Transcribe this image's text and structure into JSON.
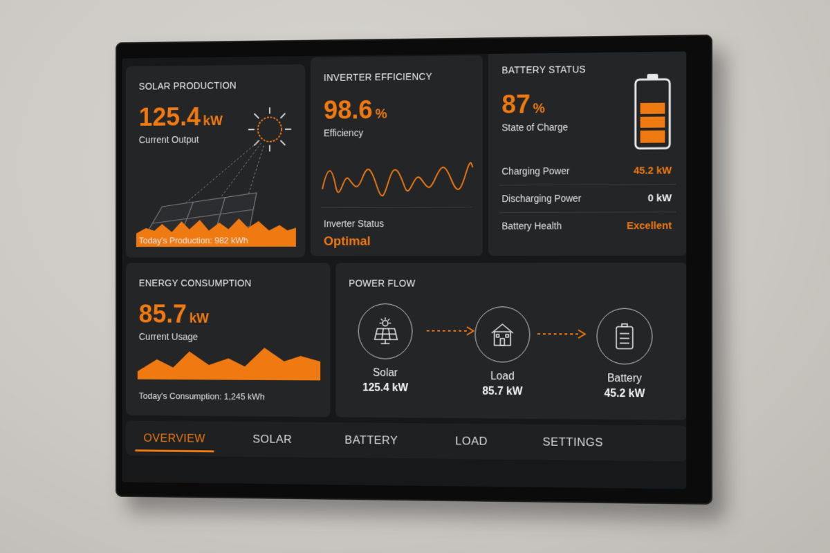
{
  "solar": {
    "title": "SOLAR PRODUCTION",
    "value": "125.4",
    "unit": "kW",
    "label": "Current Output",
    "footer": "Today's Production: 982 kWh"
  },
  "inverter": {
    "title": "INVERTER EFFICIENCY",
    "value": "98.6",
    "unit": "%",
    "label": "Efficiency",
    "status_label": "Inverter Status",
    "status_value": "Optimal"
  },
  "battery": {
    "title": "BATTERY STATUS",
    "value": "87",
    "unit": "%",
    "label": "State of Charge",
    "charge_level": 0.87,
    "rows": [
      {
        "key": "Charging Power",
        "value": "45.2 kW"
      },
      {
        "key": "Discharging Power",
        "value": "0 kW"
      },
      {
        "key": "Battery Health",
        "value": "Excellent"
      }
    ]
  },
  "consumption": {
    "title": "ENERGY CONSUMPTION",
    "value": "85.7",
    "unit": "kW",
    "label": "Current Usage",
    "footer": "Today's Consumption: 1,245 kWh"
  },
  "flow": {
    "title": "POWER FLOW",
    "nodes": [
      {
        "label": "Solar",
        "value": "125.4 kW",
        "icon": "solar-panel-icon"
      },
      {
        "label": "Load",
        "value": "85.7 kW",
        "icon": "house-icon"
      },
      {
        "label": "Battery",
        "value": "45.2 kW",
        "icon": "battery-icon"
      }
    ]
  },
  "nav": {
    "items": [
      "OVERVIEW",
      "SOLAR",
      "BATTERY",
      "LOAD",
      "SETTINGS"
    ],
    "active": "OVERVIEW"
  },
  "colors": {
    "accent": "#f07a12",
    "card": "#242527",
    "screen": "#17181a"
  }
}
